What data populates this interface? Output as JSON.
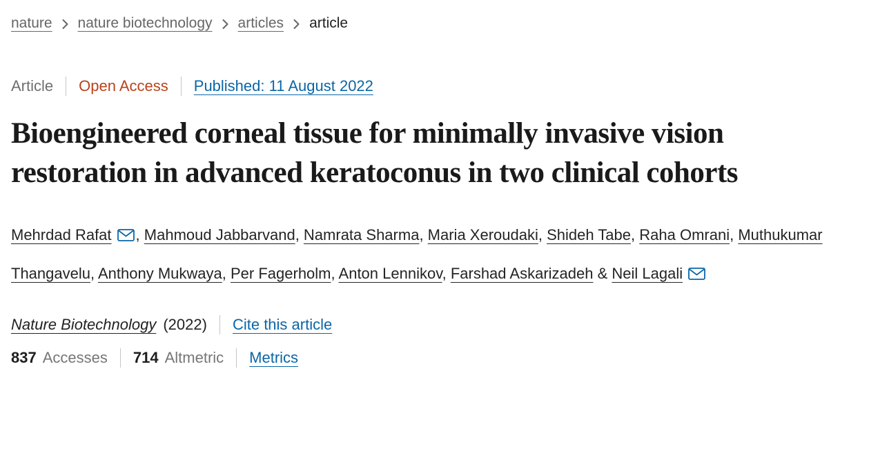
{
  "breadcrumb": {
    "items": [
      {
        "label": "nature"
      },
      {
        "label": "nature biotechnology"
      },
      {
        "label": "articles"
      },
      {
        "label": "article"
      }
    ]
  },
  "meta": {
    "type": "Article",
    "access": "Open Access",
    "published": "Published: 11 August 2022"
  },
  "title": "Bioengineered corneal tissue for minimally invasive vision restoration in advanced keratoconus in two clinical cohorts",
  "authors": [
    {
      "name": "Mehrdad Rafat",
      "email": true
    },
    {
      "name": "Mahmoud Jabbarvand",
      "email": false
    },
    {
      "name": "Namrata Sharma",
      "email": false
    },
    {
      "name": "Maria Xeroudaki",
      "email": false
    },
    {
      "name": "Shideh Tabe",
      "email": false
    },
    {
      "name": "Raha Omrani",
      "email": false
    },
    {
      "name": "Muthukumar Thangavelu",
      "email": false
    },
    {
      "name": "Anthony Mukwaya",
      "email": false
    },
    {
      "name": "Per Fagerholm",
      "email": false
    },
    {
      "name": "Anton Lennikov",
      "email": false
    },
    {
      "name": "Farshad Askarizadeh",
      "email": false
    },
    {
      "name": "Neil Lagali",
      "email": true
    }
  ],
  "author_separator": ", ",
  "author_conjunction": " & ",
  "journal": {
    "name": "Nature Biotechnology",
    "year": "(2022)",
    "cite_label": "Cite this article"
  },
  "metrics": {
    "accesses_value": "837",
    "accesses_label": "Accesses",
    "altmetric_value": "714",
    "altmetric_label": "Altmetric",
    "metrics_label": "Metrics"
  },
  "colors": {
    "link_blue": "#0a66a6",
    "open_access": "#b8431c",
    "text_dark": "#222222",
    "text_gray": "#666666",
    "separator": "#c6c6c6"
  }
}
